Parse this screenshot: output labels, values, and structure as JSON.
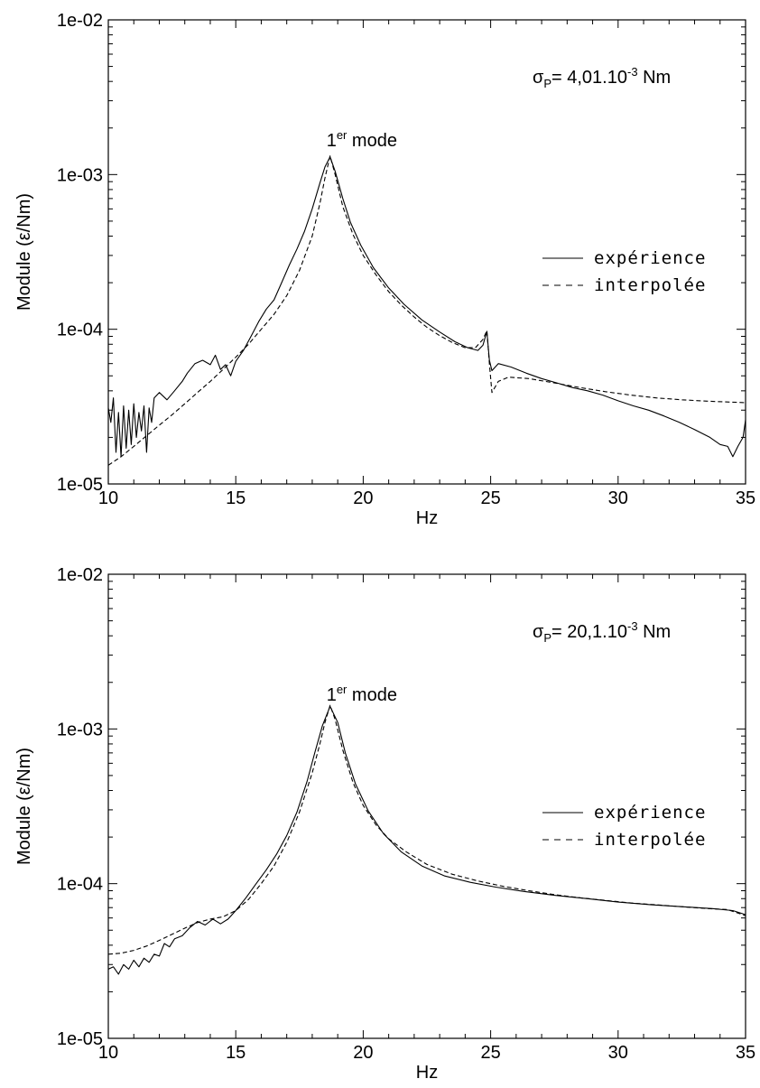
{
  "chart_data": [
    {
      "type": "line",
      "yscale": "log",
      "xlabel": "Hz",
      "ylabel": "Module  (ε/Nm)",
      "xlim": [
        10,
        35
      ],
      "ylim": [
        1e-05,
        0.01
      ],
      "x_ticks": [
        10,
        15,
        20,
        25,
        30,
        35
      ],
      "x_tick_labels": [
        "10",
        "15",
        "20",
        "25",
        "30",
        "35"
      ],
      "y_ticks": [
        1e-05,
        0.0001,
        0.001,
        0.01
      ],
      "y_tick_labels": [
        "1e-05",
        "1e-04",
        "1e-03",
        "1e-02"
      ],
      "annotation": {
        "base": "σ",
        "sub": "P",
        "mid": "= 4,01.10",
        "sup": "-3",
        "tail": " Nm"
      },
      "peak_label": {
        "base": "1",
        "sup": "er",
        "text": " mode",
        "x": 18.7
      },
      "legend": {
        "placement": "right"
      },
      "series": [
        {
          "name": "expérience",
          "style": "solid",
          "points": [
            [
              10,
              3.1e-05
            ],
            [
              10.1,
              2.5e-05
            ],
            [
              10.2,
              3.6e-05
            ],
            [
              10.3,
              1.6e-05
            ],
            [
              10.4,
              2.9e-05
            ],
            [
              10.5,
              1.5e-05
            ],
            [
              10.6,
              3.2e-05
            ],
            [
              10.7,
              1.7e-05
            ],
            [
              10.8,
              3e-05
            ],
            [
              10.9,
              1.8e-05
            ],
            [
              11,
              3.3e-05
            ],
            [
              11.1,
              2e-05
            ],
            [
              11.2,
              2.9e-05
            ],
            [
              11.3,
              2.2e-05
            ],
            [
              11.4,
              3.2e-05
            ],
            [
              11.5,
              1.6e-05
            ],
            [
              11.6,
              3.1e-05
            ],
            [
              11.7,
              2.5e-05
            ],
            [
              11.8,
              3.6e-05
            ],
            [
              12,
              3.9e-05
            ],
            [
              12.3,
              3.5e-05
            ],
            [
              12.6,
              4e-05
            ],
            [
              12.9,
              4.6e-05
            ],
            [
              13.1,
              5.2e-05
            ],
            [
              13.4,
              6e-05
            ],
            [
              13.7,
              6.3e-05
            ],
            [
              14,
              5.9e-05
            ],
            [
              14.2,
              6.8e-05
            ],
            [
              14.4,
              5.5e-05
            ],
            [
              14.6,
              5.9e-05
            ],
            [
              14.8,
              5e-05
            ],
            [
              15,
              6.2e-05
            ],
            [
              15.3,
              7.3e-05
            ],
            [
              15.6,
              9e-05
            ],
            [
              15.9,
              0.000112
            ],
            [
              16.2,
              0.000135
            ],
            [
              16.5,
              0.000155
            ],
            [
              16.8,
              0.0002
            ],
            [
              17.1,
              0.00026
            ],
            [
              17.4,
              0.00033
            ],
            [
              17.7,
              0.00043
            ],
            [
              18,
              0.0006
            ],
            [
              18.3,
              0.00088
            ],
            [
              18.5,
              0.00112
            ],
            [
              18.7,
              0.0013
            ],
            [
              18.9,
              0.00105
            ],
            [
              19.2,
              0.0007
            ],
            [
              19.5,
              0.00049
            ],
            [
              19.9,
              0.00035
            ],
            [
              20.4,
              0.00025
            ],
            [
              21,
              0.000185
            ],
            [
              21.6,
              0.000145
            ],
            [
              22.3,
              0.000115
            ],
            [
              23,
              9.6e-05
            ],
            [
              23.6,
              8.3e-05
            ],
            [
              24.1,
              7.6e-05
            ],
            [
              24.5,
              7.3e-05
            ],
            [
              24.7,
              7.9e-05
            ],
            [
              24.85,
              9.7e-05
            ],
            [
              24.95,
              6.3e-05
            ],
            [
              25.05,
              5.4e-05
            ],
            [
              25.3,
              6e-05
            ],
            [
              25.8,
              5.7e-05
            ],
            [
              26.4,
              5.2e-05
            ],
            [
              27,
              4.8e-05
            ],
            [
              27.6,
              4.5e-05
            ],
            [
              28.2,
              4.2e-05
            ],
            [
              28.8,
              4e-05
            ],
            [
              29.4,
              3.75e-05
            ],
            [
              30,
              3.45e-05
            ],
            [
              30.6,
              3.2e-05
            ],
            [
              31.2,
              3e-05
            ],
            [
              31.8,
              2.75e-05
            ],
            [
              32.4,
              2.5e-05
            ],
            [
              33,
              2.25e-05
            ],
            [
              33.6,
              2e-05
            ],
            [
              34,
              1.8e-05
            ],
            [
              34.3,
              1.75e-05
            ],
            [
              34.5,
              1.5e-05
            ],
            [
              34.7,
              1.75e-05
            ],
            [
              34.9,
              2e-05
            ],
            [
              35,
              2.6e-05
            ]
          ]
        },
        {
          "name": "interpolée",
          "style": "dashed",
          "points": [
            [
              10,
              1.32e-05
            ],
            [
              10.5,
              1.5e-05
            ],
            [
              11,
              1.75e-05
            ],
            [
              11.5,
              2.05e-05
            ],
            [
              12,
              2.4e-05
            ],
            [
              12.5,
              2.8e-05
            ],
            [
              13,
              3.3e-05
            ],
            [
              13.5,
              3.9e-05
            ],
            [
              14,
              4.6e-05
            ],
            [
              14.5,
              5.5e-05
            ],
            [
              15,
              6.6e-05
            ],
            [
              15.5,
              8e-05
            ],
            [
              16,
              0.0001
            ],
            [
              16.5,
              0.000125
            ],
            [
              17,
              0.000165
            ],
            [
              17.5,
              0.00024
            ],
            [
              18,
              0.0004
            ],
            [
              18.3,
              0.00065
            ],
            [
              18.5,
              0.00095
            ],
            [
              18.7,
              0.00132
            ],
            [
              18.9,
              0.001
            ],
            [
              19.2,
              0.00062
            ],
            [
              19.6,
              0.00041
            ],
            [
              20,
              0.0003
            ],
            [
              20.5,
              0.000225
            ],
            [
              21,
              0.000175
            ],
            [
              21.5,
              0.000143
            ],
            [
              22,
              0.00012
            ],
            [
              22.5,
              0.000103
            ],
            [
              23,
              9.1e-05
            ],
            [
              23.5,
              8.2e-05
            ],
            [
              24,
              7.6e-05
            ],
            [
              24.4,
              7.6e-05
            ],
            [
              24.7,
              8.6e-05
            ],
            [
              24.85,
              9.8e-05
            ],
            [
              24.95,
              6e-05
            ],
            [
              25.05,
              3.9e-05
            ],
            [
              25.3,
              4.6e-05
            ],
            [
              25.7,
              4.9e-05
            ],
            [
              26.5,
              4.8e-05
            ],
            [
              27.5,
              4.5e-05
            ],
            [
              28.5,
              4.2e-05
            ],
            [
              29.5,
              3.95e-05
            ],
            [
              30.5,
              3.75e-05
            ],
            [
              31.5,
              3.6e-05
            ],
            [
              32.5,
              3.5e-05
            ],
            [
              33.5,
              3.43e-05
            ],
            [
              35,
              3.35e-05
            ]
          ]
        }
      ]
    },
    {
      "type": "line",
      "yscale": "log",
      "xlabel": "Hz",
      "ylabel": "Module  (ε/Nm)",
      "xlim": [
        10,
        35
      ],
      "ylim": [
        1e-05,
        0.01
      ],
      "x_ticks": [
        10,
        15,
        20,
        25,
        30,
        35
      ],
      "x_tick_labels": [
        "10",
        "15",
        "20",
        "25",
        "30",
        "35"
      ],
      "y_ticks": [
        1e-05,
        0.0001,
        0.001,
        0.01
      ],
      "y_tick_labels": [
        "1e-05",
        "1e-04",
        "1e-03",
        "1e-02"
      ],
      "annotation": {
        "base": "σ",
        "sub": "P",
        "mid": "= 20,1.10",
        "sup": "-3",
        "tail": " Nm"
      },
      "peak_label": {
        "base": "1",
        "sup": "er",
        "text": " mode",
        "x": 18.7
      },
      "legend": {
        "placement": "right"
      },
      "series": [
        {
          "name": "expérience",
          "style": "solid",
          "points": [
            [
              10,
              2.8e-05
            ],
            [
              10.2,
              2.9e-05
            ],
            [
              10.4,
              2.6e-05
            ],
            [
              10.6,
              3e-05
            ],
            [
              10.8,
              2.8e-05
            ],
            [
              11,
              3.2e-05
            ],
            [
              11.2,
              2.9e-05
            ],
            [
              11.4,
              3.3e-05
            ],
            [
              11.6,
              3.1e-05
            ],
            [
              11.8,
              3.5e-05
            ],
            [
              12,
              3.4e-05
            ],
            [
              12.2,
              4.1e-05
            ],
            [
              12.4,
              3.9e-05
            ],
            [
              12.6,
              4.4e-05
            ],
            [
              12.9,
              4.6e-05
            ],
            [
              13.2,
              5.2e-05
            ],
            [
              13.5,
              5.7e-05
            ],
            [
              13.8,
              5.4e-05
            ],
            [
              14.1,
              5.9e-05
            ],
            [
              14.4,
              5.5e-05
            ],
            [
              14.7,
              5.9e-05
            ],
            [
              15,
              6.7e-05
            ],
            [
              15.4,
              8.1e-05
            ],
            [
              15.8,
              0.0001
            ],
            [
              16.2,
              0.000123
            ],
            [
              16.6,
              0.000155
            ],
            [
              17,
              0.000205
            ],
            [
              17.4,
              0.00029
            ],
            [
              17.8,
              0.00046
            ],
            [
              18.1,
              0.0007
            ],
            [
              18.4,
              0.00105
            ],
            [
              18.7,
              0.0014
            ],
            [
              19,
              0.0011
            ],
            [
              19.3,
              0.0007
            ],
            [
              19.7,
              0.00044
            ],
            [
              20.2,
              0.000295
            ],
            [
              20.8,
              0.00021
            ],
            [
              21.5,
              0.00016
            ],
            [
              22.3,
              0.00013
            ],
            [
              23.2,
              0.000112
            ],
            [
              24.2,
              0.000102
            ],
            [
              25.2,
              9.5e-05
            ],
            [
              26.3,
              8.9e-05
            ],
            [
              27.5,
              8.4e-05
            ],
            [
              28.8,
              8e-05
            ],
            [
              30,
              7.6e-05
            ],
            [
              31.3,
              7.3e-05
            ],
            [
              32.5,
              7.1e-05
            ],
            [
              33.7,
              6.9e-05
            ],
            [
              34.5,
              6.7e-05
            ],
            [
              35,
              6.3e-05
            ]
          ]
        },
        {
          "name": "interpolée",
          "style": "dashed",
          "points": [
            [
              10,
              3.5e-05
            ],
            [
              10.5,
              3.55e-05
            ],
            [
              11,
              3.7e-05
            ],
            [
              11.5,
              3.95e-05
            ],
            [
              12,
              4.3e-05
            ],
            [
              12.5,
              4.7e-05
            ],
            [
              13,
              5.15e-05
            ],
            [
              13.5,
              5.6e-05
            ],
            [
              14,
              5.9e-05
            ],
            [
              14.5,
              6.1e-05
            ],
            [
              15,
              6.7e-05
            ],
            [
              15.5,
              7.9e-05
            ],
            [
              16,
              0.0001
            ],
            [
              16.5,
              0.00013
            ],
            [
              17,
              0.000185
            ],
            [
              17.5,
              0.00029
            ],
            [
              18,
              0.00052
            ],
            [
              18.3,
              0.0008
            ],
            [
              18.5,
              0.0011
            ],
            [
              18.7,
              0.00142
            ],
            [
              18.9,
              0.00115
            ],
            [
              19.2,
              0.00073
            ],
            [
              19.6,
              0.00045
            ],
            [
              20,
              0.00032
            ],
            [
              20.5,
              0.00024
            ],
            [
              21,
              0.000195
            ],
            [
              21.7,
              0.00016
            ],
            [
              22.5,
              0.000133
            ],
            [
              23.5,
              0.000115
            ],
            [
              24.5,
              0.000104
            ],
            [
              25.5,
              9.6e-05
            ],
            [
              26.5,
              9e-05
            ],
            [
              27.5,
              8.5e-05
            ],
            [
              28.5,
              8.1e-05
            ],
            [
              29.5,
              7.8e-05
            ],
            [
              30.5,
              7.5e-05
            ],
            [
              31.5,
              7.3e-05
            ],
            [
              32.5,
              7.1e-05
            ],
            [
              33.5,
              6.9e-05
            ],
            [
              34.3,
              6.8e-05
            ],
            [
              35,
              6.2e-05
            ]
          ]
        }
      ]
    }
  ]
}
